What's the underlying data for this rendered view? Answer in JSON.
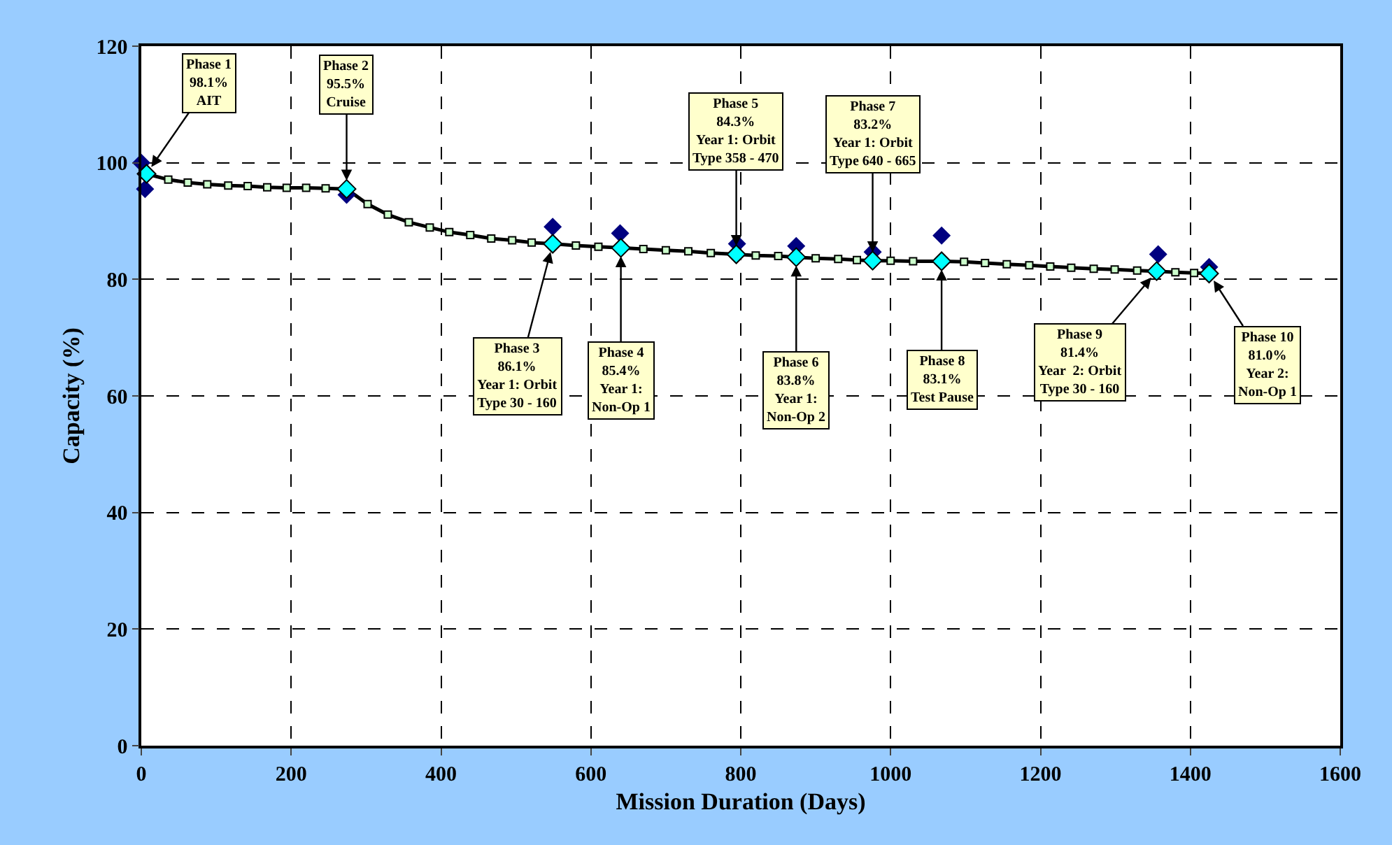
{
  "chart_data": {
    "type": "line",
    "xlabel": "Mission Duration (Days)",
    "ylabel": "Capacity (%)",
    "xlim": [
      0,
      1600
    ],
    "xticks": [
      0,
      200,
      400,
      600,
      800,
      1000,
      1200,
      1400,
      1600
    ],
    "ylim": [
      0,
      120
    ],
    "yticks": [
      0,
      20,
      40,
      60,
      80,
      100,
      120
    ],
    "grid": true,
    "line_style": "solid",
    "series": [
      {
        "color": "#000000",
        "marker": "square",
        "x": [
          7,
          36,
          62,
          88,
          116,
          142,
          168,
          194,
          220,
          246,
          274,
          302,
          329,
          357,
          385,
          411,
          439,
          467,
          495,
          521,
          549,
          580,
          610,
          640,
          670,
          700,
          730,
          760,
          794,
          820,
          850,
          874,
          900,
          930,
          955,
          976,
          1000,
          1030,
          1068,
          1098,
          1126,
          1155,
          1185,
          1213,
          1241,
          1271,
          1299,
          1329,
          1355,
          1380,
          1405,
          1425
        ],
        "values": [
          98.1,
          97.1,
          96.6,
          96.3,
          96.1,
          96.0,
          95.8,
          95.7,
          95.7,
          95.6,
          95.5,
          92.9,
          91.1,
          89.8,
          88.9,
          88.1,
          87.6,
          87.0,
          86.7,
          86.3,
          86.1,
          85.8,
          85.6,
          85.4,
          85.2,
          85.0,
          84.8,
          84.5,
          84.3,
          84.1,
          84.0,
          83.8,
          83.6,
          83.5,
          83.3,
          83.2,
          83.2,
          83.1,
          83.1,
          83.0,
          82.8,
          82.6,
          82.4,
          82.2,
          82.0,
          81.8,
          81.7,
          81.5,
          81.4,
          81.2,
          81.1,
          81.0
        ]
      },
      {
        "type": "scatter",
        "color": "#000080",
        "marker": "diamond",
        "x": [
          0,
          5,
          274,
          549,
          639,
          795,
          874,
          976,
          1068,
          1357,
          1425
        ],
        "values": [
          100,
          95.5,
          94.5,
          89.0,
          87.9,
          86.1,
          85.7,
          84.7,
          87.5,
          84.3,
          82.1
        ]
      },
      {
        "type": "scatter",
        "color": "#00ffff",
        "marker": "diamond",
        "x": [
          7,
          274,
          549,
          640,
          794,
          874,
          976,
          1068,
          1355,
          1425
        ],
        "values": [
          98.1,
          95.5,
          86.1,
          85.4,
          84.3,
          83.8,
          83.2,
          83.1,
          81.4,
          81.0
        ]
      }
    ],
    "annotations": [
      {
        "text": "Phase 1\n98.1%\nAIT",
        "x": 7,
        "y": 98.1
      },
      {
        "text": "Phase 2\n95.5%\nCruise",
        "x": 274,
        "y": 95.5
      },
      {
        "text": "Phase 3\n86.1%\nYear 1: Orbit\nType 30 - 160",
        "x": 549,
        "y": 86.1
      },
      {
        "text": "Phase 4\n85.4%\nYear 1:\nNon-Op 1",
        "x": 640,
        "y": 85.4
      },
      {
        "text": "Phase 5\n84.3%\nYear 1: Orbit\nType 358 - 470",
        "x": 794,
        "y": 84.3
      },
      {
        "text": "Phase 6\n83.8%\nYear 1:\nNon-Op 2",
        "x": 874,
        "y": 83.8
      },
      {
        "text": "Phase 7\n83.2%\nYear 1: Orbit\nType 640 - 665",
        "x": 976,
        "y": 83.2
      },
      {
        "text": "Phase 8\n83.1%\nTest Pause",
        "x": 1068,
        "y": 83.1
      },
      {
        "text": "Phase 9\n81.4%\nYear  2: Orbit\nType 30 - 160",
        "x": 1355,
        "y": 81.4
      },
      {
        "text": "Phase 10\n81.0%\nYear 2:\nNon-Op 1",
        "x": 1425,
        "y": 81.0
      }
    ]
  }
}
